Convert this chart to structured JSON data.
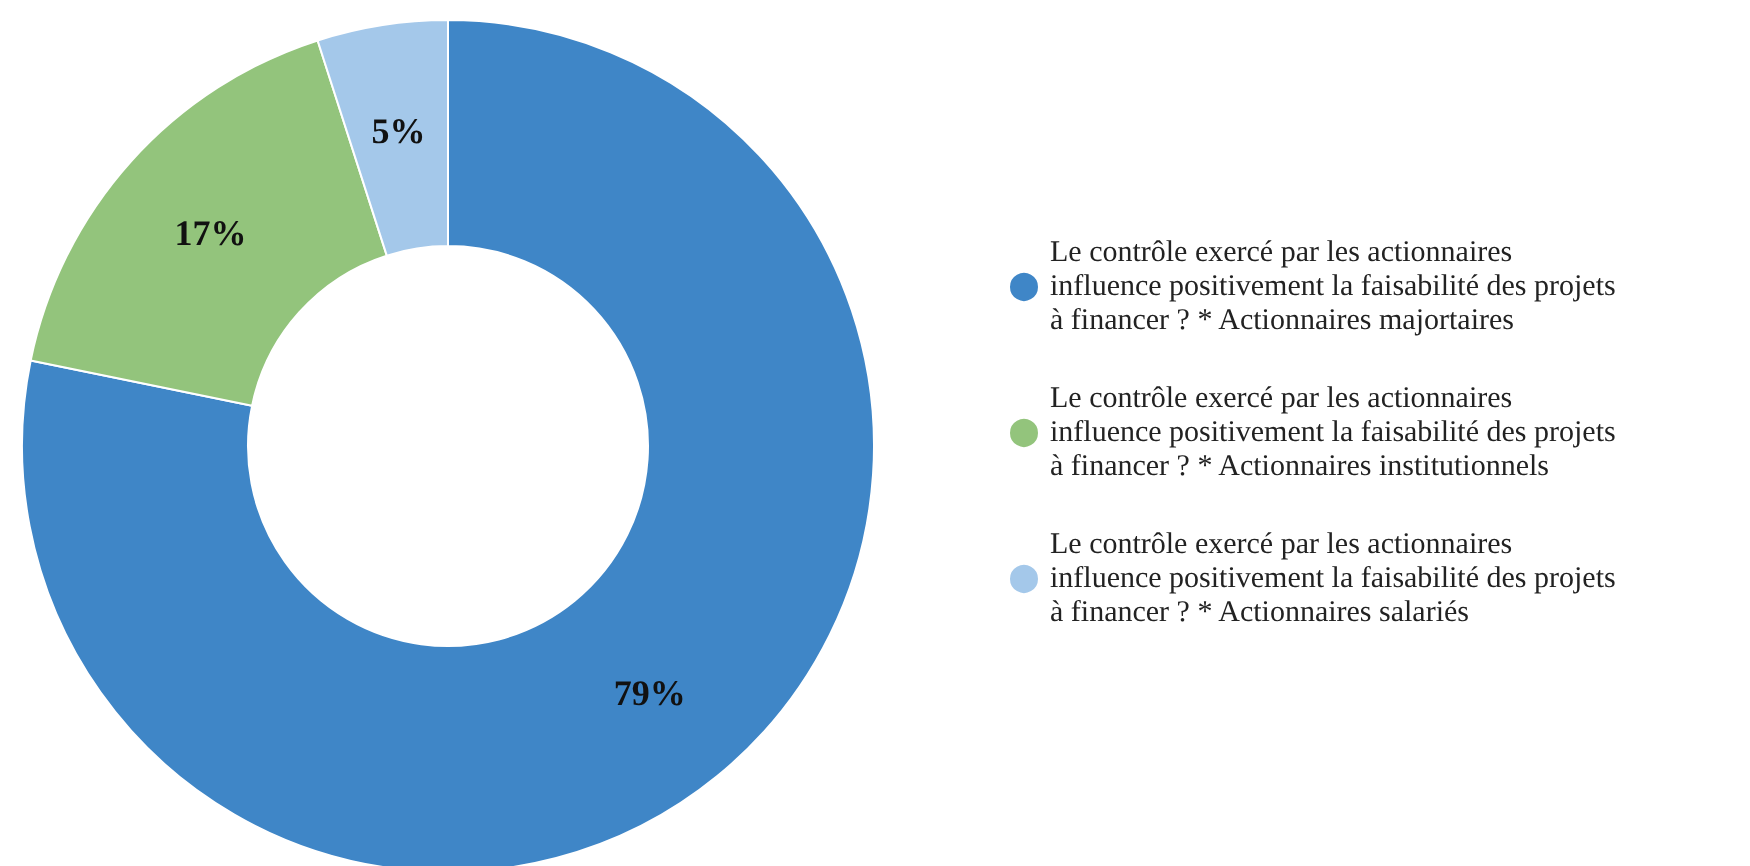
{
  "chart_data": {
    "type": "donut",
    "categories": [
      "Le contrôle exercé par les actionnaires influence positivement la faisabilité des projets à financer ? * Actionnaires majortaires",
      "Le contrôle exercé par les actionnaires influence positivement la faisabilité des projets à financer ? * Actionnaires institutionnels",
      "Le contrôle exercé par les actionnaires influence positivement la faisabilité des projets à financer ? * Actionnaires salariés"
    ],
    "values": [
      79,
      17,
      5
    ],
    "colors": [
      "#3f86c7",
      "#93c47c",
      "#a4c8ea"
    ],
    "value_labels": [
      "79%",
      "17%",
      "5%"
    ],
    "legend": "right"
  }
}
